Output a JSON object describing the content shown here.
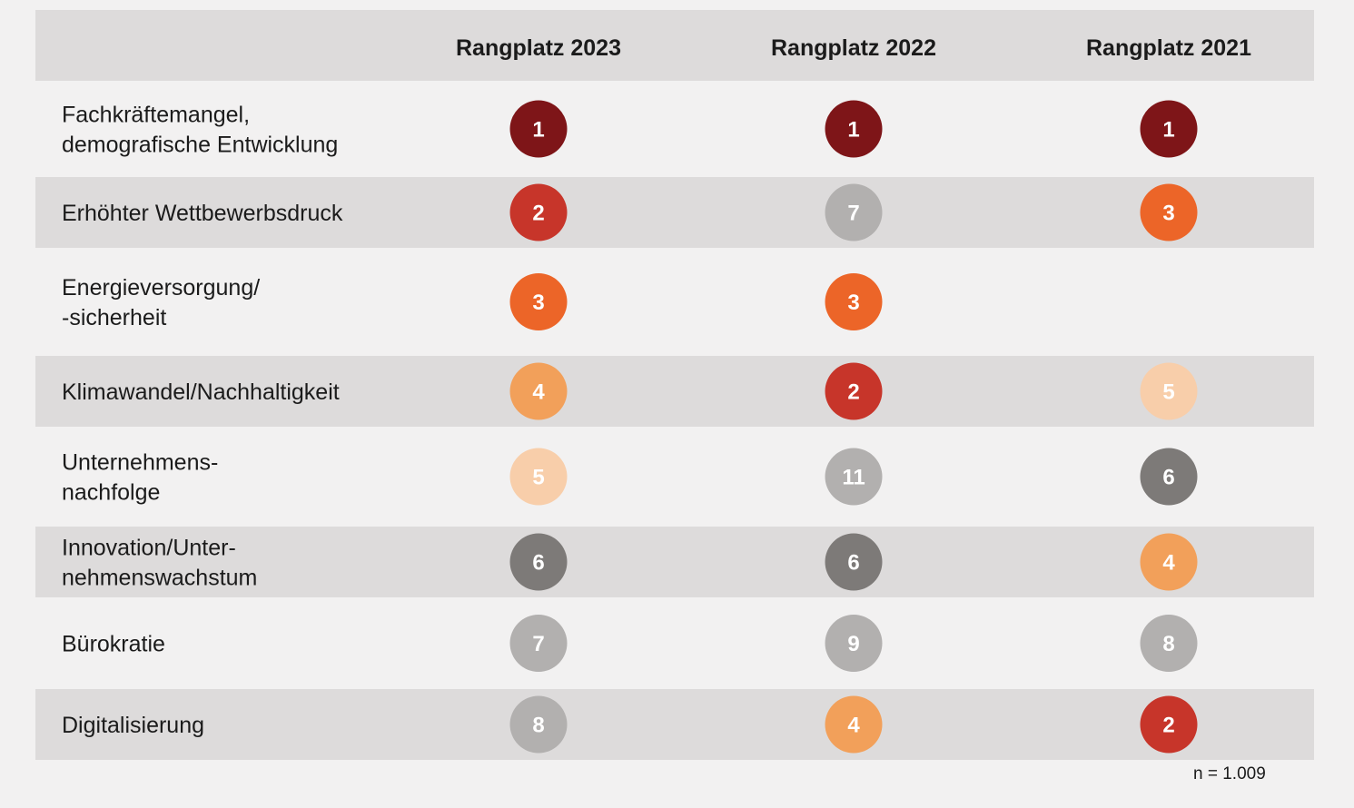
{
  "chart_data": {
    "type": "table",
    "columns": [
      "Rangplatz 2023",
      "Rangplatz 2022",
      "Rangplatz 2021"
    ],
    "rows": [
      {
        "label": [
          "Fachkräftemangel,",
          "demografische Entwicklung"
        ],
        "ranks": [
          1,
          1,
          1
        ]
      },
      {
        "label": [
          "Erhöhter Wettbewerbsdruck"
        ],
        "ranks": [
          2,
          7,
          3
        ]
      },
      {
        "label": [
          "Energieversorgung/",
          "-sicherheit"
        ],
        "ranks": [
          3,
          3,
          null
        ]
      },
      {
        "label": [
          "Klimawandel/Nachhaltigkeit"
        ],
        "ranks": [
          4,
          2,
          5
        ]
      },
      {
        "label": [
          "Unternehmens-",
          "nachfolge"
        ],
        "ranks": [
          5,
          11,
          6
        ]
      },
      {
        "label": [
          "Innovation/Unter-",
          "nehmenswachstum"
        ],
        "ranks": [
          6,
          6,
          4
        ]
      },
      {
        "label": [
          "Bürokratie"
        ],
        "ranks": [
          7,
          9,
          8
        ]
      },
      {
        "label": [
          "Digitalisierung"
        ],
        "ranks": [
          8,
          4,
          2
        ]
      }
    ],
    "rank_colors": {
      "1": "#7e1518",
      "2": "#c7352a",
      "3": "#ec6528",
      "4": "#f2a05a",
      "5": "#f8ceaa",
      "6": "#7d7a78",
      "7": "#b2b0af",
      "8": "#b2b0af",
      "9": "#b2b0af",
      "11": "#b2b0af"
    },
    "footnote": "n = 1.009"
  }
}
